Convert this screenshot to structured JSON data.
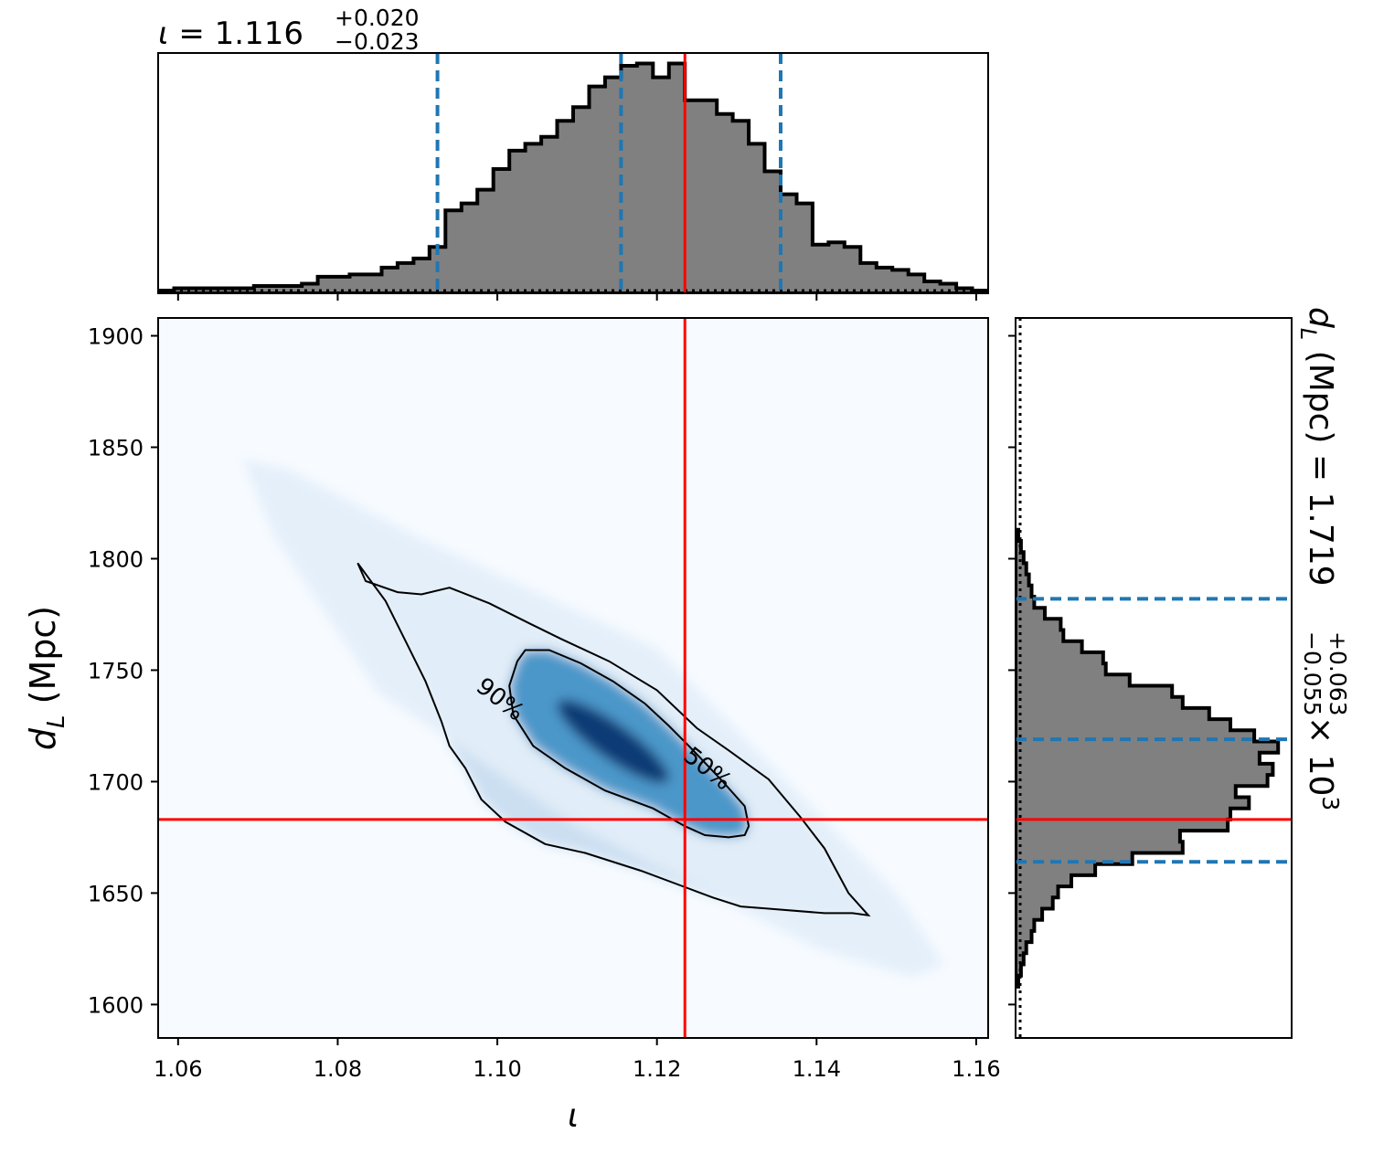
{
  "chart_data": {
    "type": "corner",
    "colors": {
      "hist_fill": "#808080",
      "hist_edge": "#000000",
      "truth_line": "#ff0000",
      "quantile_line": "#1f77b4",
      "density_cmap": "Blues",
      "contour": "#000000"
    },
    "top_histogram": {
      "title_value": "1.116",
      "title_plus": "+0.020",
      "title_minus": "−0.023",
      "xlim": [
        1.0575,
        1.1615
      ],
      "quantiles": [
        1.0925,
        1.1155,
        1.1355
      ],
      "truth": 1.1235,
      "bin_edges_start": 1.0575,
      "bin_width": 0.002,
      "counts": [
        0.0,
        0.01,
        0.01,
        0.01,
        0.01,
        0.01,
        0.02,
        0.02,
        0.02,
        0.03,
        0.06,
        0.06,
        0.07,
        0.07,
        0.1,
        0.12,
        0.14,
        0.19,
        0.35,
        0.38,
        0.44,
        0.53,
        0.61,
        0.64,
        0.67,
        0.74,
        0.8,
        0.89,
        0.93,
        0.98,
        0.99,
        0.93,
        0.99,
        0.83,
        0.83,
        0.77,
        0.74,
        0.64,
        0.52,
        0.42,
        0.38,
        0.2,
        0.21,
        0.19,
        0.12,
        0.1,
        0.09,
        0.07,
        0.04,
        0.03,
        0.01,
        0.0
      ]
    },
    "heatmap": {
      "xlabel": "ι",
      "ylabel": "d_L (Mpc)",
      "xlim": [
        1.0575,
        1.1615
      ],
      "ylim": [
        1585,
        1908
      ],
      "xticks": [
        1.06,
        1.08,
        1.1,
        1.12,
        1.14,
        1.16
      ],
      "xtick_labels": [
        "1.06",
        "1.08",
        "1.10",
        "1.12",
        "1.14",
        "1.16"
      ],
      "yticks": [
        1600,
        1650,
        1700,
        1750,
        1800,
        1850,
        1900
      ],
      "ytick_labels": [
        "1600",
        "1650",
        "1700",
        "1750",
        "1800",
        "1850",
        "1900"
      ],
      "truth": {
        "x": 1.1235,
        "y": 1683
      },
      "contour_labels": [
        "90%",
        "50%"
      ],
      "contour_90": [
        [
          1.0825,
          1798
        ],
        [
          1.0835,
          1790
        ],
        [
          1.0875,
          1785
        ],
        [
          1.0905,
          1784
        ],
        [
          1.094,
          1787
        ],
        [
          1.099,
          1780
        ],
        [
          1.104,
          1771
        ],
        [
          1.108,
          1764
        ],
        [
          1.114,
          1754
        ],
        [
          1.12,
          1741
        ],
        [
          1.125,
          1724
        ],
        [
          1.129,
          1714
        ],
        [
          1.134,
          1701
        ],
        [
          1.138,
          1684
        ],
        [
          1.141,
          1670
        ],
        [
          1.1425,
          1660
        ],
        [
          1.144,
          1650
        ],
        [
          1.1465,
          1640
        ],
        [
          1.1445,
          1641
        ],
        [
          1.141,
          1641
        ],
        [
          1.134,
          1643
        ],
        [
          1.1305,
          1644
        ],
        [
          1.127,
          1648
        ],
        [
          1.124,
          1652
        ],
        [
          1.118,
          1660
        ],
        [
          1.111,
          1668
        ],
        [
          1.106,
          1672
        ],
        [
          1.101,
          1682
        ],
        [
          1.098,
          1692
        ],
        [
          1.096,
          1706
        ],
        [
          1.094,
          1716
        ],
        [
          1.093,
          1727
        ],
        [
          1.091,
          1745
        ],
        [
          1.0885,
          1763
        ],
        [
          1.086,
          1781
        ],
        [
          1.0825,
          1798
        ]
      ],
      "contour_50": [
        [
          1.1025,
          1754
        ],
        [
          1.1035,
          1759
        ],
        [
          1.1065,
          1759
        ],
        [
          1.1105,
          1753
        ],
        [
          1.1145,
          1745
        ],
        [
          1.1185,
          1735
        ],
        [
          1.1215,
          1725
        ],
        [
          1.124,
          1716
        ],
        [
          1.128,
          1701
        ],
        [
          1.131,
          1689
        ],
        [
          1.1315,
          1680
        ],
        [
          1.131,
          1676
        ],
        [
          1.129,
          1675
        ],
        [
          1.126,
          1676
        ],
        [
          1.1235,
          1680
        ],
        [
          1.1195,
          1688
        ],
        [
          1.1135,
          1696
        ],
        [
          1.1085,
          1706
        ],
        [
          1.1045,
          1716
        ],
        [
          1.102,
          1730
        ],
        [
          1.1015,
          1743
        ],
        [
          1.1025,
          1754
        ]
      ]
    },
    "right_histogram": {
      "label_prefix": "d_L (Mpc) = 1.719",
      "label_plus": "+0.063",
      "label_minus": "−0.055",
      "label_suffix": "× 10^3",
      "ylim": [
        1585,
        1908
      ],
      "quantiles": [
        1664,
        1719,
        1782
      ],
      "truth": 1683,
      "bin_edges_start": 1608,
      "bin_width": 5,
      "counts": [
        0.0,
        0.01,
        0.02,
        0.03,
        0.05,
        0.06,
        0.09,
        0.13,
        0.15,
        0.2,
        0.29,
        0.43,
        0.62,
        0.61,
        0.79,
        0.8,
        0.87,
        0.82,
        0.94,
        0.96,
        0.91,
        0.98,
        0.89,
        0.8,
        0.72,
        0.62,
        0.58,
        0.42,
        0.33,
        0.32,
        0.24,
        0.17,
        0.16,
        0.1,
        0.06,
        0.05,
        0.04,
        0.03,
        0.02,
        0.01,
        0.0
      ]
    }
  }
}
